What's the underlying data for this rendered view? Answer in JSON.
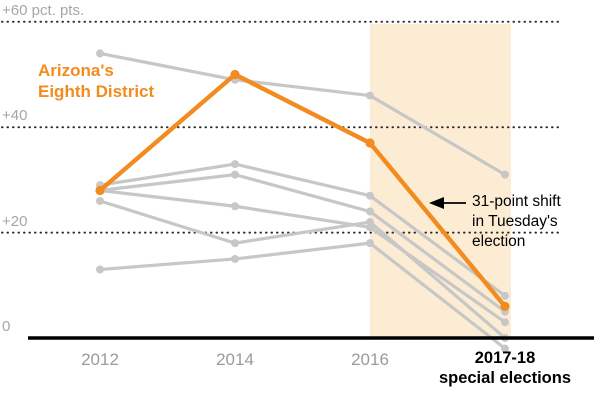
{
  "chart_data": {
    "type": "line",
    "x_categories": [
      "2012",
      "2014",
      "2016",
      "2017-18 special elections"
    ],
    "x_tick_labels": [
      "2012",
      "2014",
      "2016",
      "2017-18\nspecial elections"
    ],
    "y_tick_values": [
      0,
      20,
      40,
      60
    ],
    "y_tick_labels": [
      "0",
      "+20",
      "+40",
      "+60 pct. pts."
    ],
    "ylim": [
      -4,
      62
    ],
    "grid": "dotted horizontal lines at +20, +40, +60; solid black baseline at 0",
    "highlight_series": {
      "name": "Arizona's Eighth District",
      "label_text": "Arizona's\nEighth District",
      "color": "#f28b20",
      "values": [
        28,
        50,
        37,
        6
      ]
    },
    "gray_series": [
      {
        "values": [
          54,
          49,
          46,
          31
        ]
      },
      {
        "values": [
          29,
          33,
          27,
          8
        ]
      },
      {
        "values": [
          28,
          31,
          24,
          5
        ]
      },
      {
        "values": [
          28,
          25,
          21,
          3
        ]
      },
      {
        "values": [
          26,
          18,
          22,
          0
        ]
      },
      {
        "values": [
          13,
          15,
          18,
          -2
        ]
      }
    ],
    "gray_color": "#c7c7c7",
    "axis_color": "#000000",
    "shaded_region": {
      "from": "2016",
      "to": "2017-18 special elections",
      "color": "#fcecd4"
    },
    "annotation": {
      "text": "31-point shift\nin Tuesday's\nelection"
    }
  }
}
